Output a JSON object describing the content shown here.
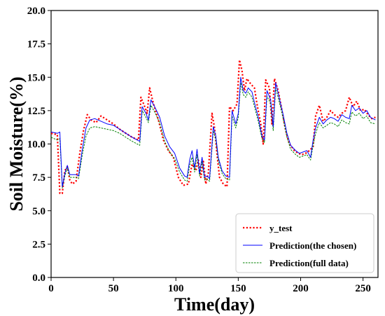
{
  "chart_data": {
    "type": "line",
    "title": "",
    "xlabel": "Time(day)",
    "ylabel": "Soil Moisture(%)",
    "xlim": [
      0,
      262
    ],
    "ylim": [
      0.0,
      20.0
    ],
    "x_ticks": [
      0,
      50,
      100,
      150,
      200,
      250
    ],
    "x_tick_labels": [
      "0",
      "50",
      "100",
      "150",
      "200",
      "250"
    ],
    "y_ticks": [
      0.0,
      2.5,
      5.0,
      7.5,
      10.0,
      12.5,
      15.0,
      17.5,
      20.0
    ],
    "y_tick_labels": [
      "0.0",
      "2.5",
      "5.0",
      "7.5",
      "10.0",
      "12.5",
      "15.0",
      "17.5",
      "20.0"
    ],
    "grid": false,
    "legend_position": "lower-right",
    "series": [
      {
        "name": "y_test",
        "color": "#ff0000",
        "style": "dotted",
        "points": [
          [
            0,
            10.8
          ],
          [
            5,
            10.7
          ],
          [
            7,
            6.3
          ],
          [
            9,
            6.3
          ],
          [
            11,
            8.0
          ],
          [
            13,
            8.3
          ],
          [
            15,
            7.3
          ],
          [
            17,
            7.0
          ],
          [
            20,
            7.2
          ],
          [
            23,
            9.3
          ],
          [
            26,
            11.0
          ],
          [
            29,
            12.2
          ],
          [
            32,
            11.8
          ],
          [
            36,
            11.6
          ],
          [
            40,
            12.1
          ],
          [
            45,
            11.8
          ],
          [
            50,
            11.5
          ],
          [
            55,
            11.1
          ],
          [
            60,
            10.8
          ],
          [
            65,
            10.5
          ],
          [
            70,
            10.3
          ],
          [
            72,
            13.5
          ],
          [
            75,
            12.8
          ],
          [
            77,
            12.3
          ],
          [
            79,
            14.2
          ],
          [
            82,
            13.0
          ],
          [
            86,
            11.8
          ],
          [
            90,
            10.3
          ],
          [
            94,
            9.5
          ],
          [
            98,
            9.0
          ],
          [
            102,
            7.5
          ],
          [
            106,
            6.9
          ],
          [
            110,
            7.0
          ],
          [
            113,
            8.5
          ],
          [
            116,
            8.0
          ],
          [
            118,
            8.8
          ],
          [
            120,
            7.5
          ],
          [
            122,
            8.7
          ],
          [
            124,
            7.0
          ],
          [
            126,
            7.8
          ],
          [
            129,
            12.3
          ],
          [
            131,
            11.2
          ],
          [
            133,
            9.2
          ],
          [
            135,
            7.5
          ],
          [
            138,
            7.0
          ],
          [
            141,
            6.8
          ],
          [
            143,
            12.8
          ],
          [
            146,
            12.5
          ],
          [
            149,
            13.0
          ],
          [
            151,
            16.3
          ],
          [
            153,
            15.5
          ],
          [
            155,
            14.0
          ],
          [
            157,
            14.9
          ],
          [
            160,
            14.5
          ],
          [
            163,
            14.2
          ],
          [
            165,
            13.0
          ],
          [
            168,
            11.5
          ],
          [
            170,
            10.0
          ],
          [
            172,
            14.8
          ],
          [
            175,
            14.2
          ],
          [
            177,
            11.5
          ],
          [
            179,
            14.9
          ],
          [
            182,
            14.0
          ],
          [
            185,
            12.5
          ],
          [
            188,
            11.0
          ],
          [
            191,
            10.0
          ],
          [
            195,
            9.5
          ],
          [
            198,
            9.3
          ],
          [
            201,
            9.2
          ],
          [
            204,
            9.3
          ],
          [
            207,
            9.5
          ],
          [
            210,
            9.8
          ],
          [
            212,
            12.1
          ],
          [
            215,
            12.9
          ],
          [
            218,
            11.7
          ],
          [
            221,
            12.0
          ],
          [
            224,
            12.5
          ],
          [
            227,
            12.2
          ],
          [
            230,
            12.0
          ],
          [
            233,
            12.3
          ],
          [
            236,
            12.5
          ],
          [
            239,
            13.5
          ],
          [
            242,
            12.8
          ],
          [
            245,
            13.2
          ],
          [
            248,
            12.5
          ],
          [
            251,
            12.6
          ],
          [
            254,
            12.2
          ],
          [
            257,
            11.9
          ],
          [
            260,
            12.0
          ]
        ]
      },
      {
        "name": "Prediction(the chosen)",
        "color": "#0000ff",
        "style": "solid",
        "points": [
          [
            0,
            10.9
          ],
          [
            5,
            10.8
          ],
          [
            7,
            10.9
          ],
          [
            9,
            6.8
          ],
          [
            11,
            7.8
          ],
          [
            13,
            8.4
          ],
          [
            15,
            7.7
          ],
          [
            17,
            7.7
          ],
          [
            20,
            7.7
          ],
          [
            22,
            7.6
          ],
          [
            25,
            9.6
          ],
          [
            28,
            11.2
          ],
          [
            31,
            11.8
          ],
          [
            35,
            11.9
          ],
          [
            40,
            11.7
          ],
          [
            45,
            11.5
          ],
          [
            50,
            11.4
          ],
          [
            55,
            11.1
          ],
          [
            60,
            10.8
          ],
          [
            65,
            10.5
          ],
          [
            69,
            10.3
          ],
          [
            71,
            10.2
          ],
          [
            73,
            12.8
          ],
          [
            76,
            12.3
          ],
          [
            78,
            11.8
          ],
          [
            80,
            13.3
          ],
          [
            83,
            12.8
          ],
          [
            87,
            12.0
          ],
          [
            91,
            10.6
          ],
          [
            95,
            9.8
          ],
          [
            99,
            9.3
          ],
          [
            103,
            8.2
          ],
          [
            107,
            7.6
          ],
          [
            109,
            7.5
          ],
          [
            111,
            8.8
          ],
          [
            113,
            9.5
          ],
          [
            115,
            8.2
          ],
          [
            117,
            9.6
          ],
          [
            119,
            7.8
          ],
          [
            121,
            9.0
          ],
          [
            123,
            7.5
          ],
          [
            125,
            7.6
          ],
          [
            127,
            7.4
          ],
          [
            130,
            11.3
          ],
          [
            132,
            10.6
          ],
          [
            134,
            9.0
          ],
          [
            137,
            8.0
          ],
          [
            140,
            7.6
          ],
          [
            143,
            7.5
          ],
          [
            145,
            12.5
          ],
          [
            148,
            11.5
          ],
          [
            150,
            12.3
          ],
          [
            152,
            15.0
          ],
          [
            154,
            14.0
          ],
          [
            156,
            13.8
          ],
          [
            158,
            14.2
          ],
          [
            161,
            13.9
          ],
          [
            163,
            13.1
          ],
          [
            166,
            12.0
          ],
          [
            169,
            10.6
          ],
          [
            171,
            10.3
          ],
          [
            173,
            14.0
          ],
          [
            176,
            13.3
          ],
          [
            178,
            11.3
          ],
          [
            180,
            14.6
          ],
          [
            183,
            13.4
          ],
          [
            186,
            12.2
          ],
          [
            189,
            10.8
          ],
          [
            192,
            9.9
          ],
          [
            196,
            9.5
          ],
          [
            199,
            9.3
          ],
          [
            202,
            9.4
          ],
          [
            205,
            9.5
          ],
          [
            208,
            9.0
          ],
          [
            210,
            10.3
          ],
          [
            212,
            11.2
          ],
          [
            215,
            12.0
          ],
          [
            218,
            11.5
          ],
          [
            221,
            11.8
          ],
          [
            224,
            12.0
          ],
          [
            227,
            11.9
          ],
          [
            230,
            11.7
          ],
          [
            233,
            12.2
          ],
          [
            236,
            12.0
          ],
          [
            239,
            11.9
          ],
          [
            241,
            12.9
          ],
          [
            244,
            12.5
          ],
          [
            247,
            12.7
          ],
          [
            250,
            12.3
          ],
          [
            253,
            12.5
          ],
          [
            256,
            12.0
          ],
          [
            260,
            11.8
          ]
        ]
      },
      {
        "name": "Prediction(full data)",
        "color": "#008000",
        "style": "dashed",
        "points": [
          [
            0,
            10.5
          ],
          [
            5,
            10.3
          ],
          [
            7,
            10.4
          ],
          [
            9,
            6.7
          ],
          [
            11,
            7.6
          ],
          [
            13,
            8.2
          ],
          [
            15,
            7.5
          ],
          [
            17,
            7.5
          ],
          [
            20,
            7.5
          ],
          [
            22,
            7.4
          ],
          [
            25,
            9.2
          ],
          [
            28,
            10.6
          ],
          [
            31,
            11.2
          ],
          [
            35,
            11.3
          ],
          [
            40,
            11.2
          ],
          [
            45,
            11.1
          ],
          [
            50,
            11.0
          ],
          [
            55,
            10.8
          ],
          [
            60,
            10.5
          ],
          [
            65,
            10.2
          ],
          [
            69,
            10.0
          ],
          [
            71,
            9.9
          ],
          [
            73,
            12.5
          ],
          [
            76,
            12.0
          ],
          [
            78,
            11.6
          ],
          [
            80,
            12.9
          ],
          [
            83,
            12.4
          ],
          [
            87,
            11.6
          ],
          [
            91,
            10.2
          ],
          [
            95,
            9.4
          ],
          [
            99,
            8.9
          ],
          [
            103,
            7.9
          ],
          [
            107,
            7.3
          ],
          [
            109,
            7.2
          ],
          [
            111,
            8.4
          ],
          [
            113,
            9.0
          ],
          [
            115,
            7.9
          ],
          [
            117,
            9.2
          ],
          [
            119,
            7.6
          ],
          [
            121,
            8.7
          ],
          [
            123,
            7.3
          ],
          [
            125,
            7.4
          ],
          [
            127,
            7.2
          ],
          [
            130,
            11.0
          ],
          [
            132,
            10.3
          ],
          [
            134,
            8.8
          ],
          [
            137,
            7.8
          ],
          [
            140,
            7.4
          ],
          [
            143,
            7.3
          ],
          [
            145,
            12.1
          ],
          [
            148,
            11.2
          ],
          [
            150,
            12.0
          ],
          [
            152,
            14.6
          ],
          [
            154,
            13.7
          ],
          [
            156,
            13.5
          ],
          [
            158,
            13.9
          ],
          [
            161,
            13.5
          ],
          [
            163,
            12.8
          ],
          [
            166,
            11.7
          ],
          [
            169,
            10.4
          ],
          [
            171,
            10.1
          ],
          [
            173,
            13.6
          ],
          [
            176,
            13.0
          ],
          [
            178,
            11.0
          ],
          [
            180,
            14.2
          ],
          [
            183,
            13.1
          ],
          [
            186,
            11.9
          ],
          [
            189,
            10.5
          ],
          [
            192,
            9.6
          ],
          [
            196,
            9.2
          ],
          [
            199,
            9.0
          ],
          [
            202,
            9.1
          ],
          [
            205,
            9.2
          ],
          [
            208,
            8.8
          ],
          [
            210,
            9.9
          ],
          [
            212,
            10.8
          ],
          [
            215,
            11.6
          ],
          [
            218,
            11.2
          ],
          [
            221,
            11.4
          ],
          [
            224,
            11.6
          ],
          [
            227,
            11.5
          ],
          [
            230,
            11.3
          ],
          [
            233,
            11.8
          ],
          [
            236,
            11.6
          ],
          [
            239,
            11.5
          ],
          [
            241,
            12.4
          ],
          [
            244,
            12.1
          ],
          [
            247,
            12.3
          ],
          [
            250,
            11.9
          ],
          [
            253,
            12.1
          ],
          [
            256,
            11.6
          ],
          [
            260,
            11.5
          ]
        ]
      }
    ]
  }
}
